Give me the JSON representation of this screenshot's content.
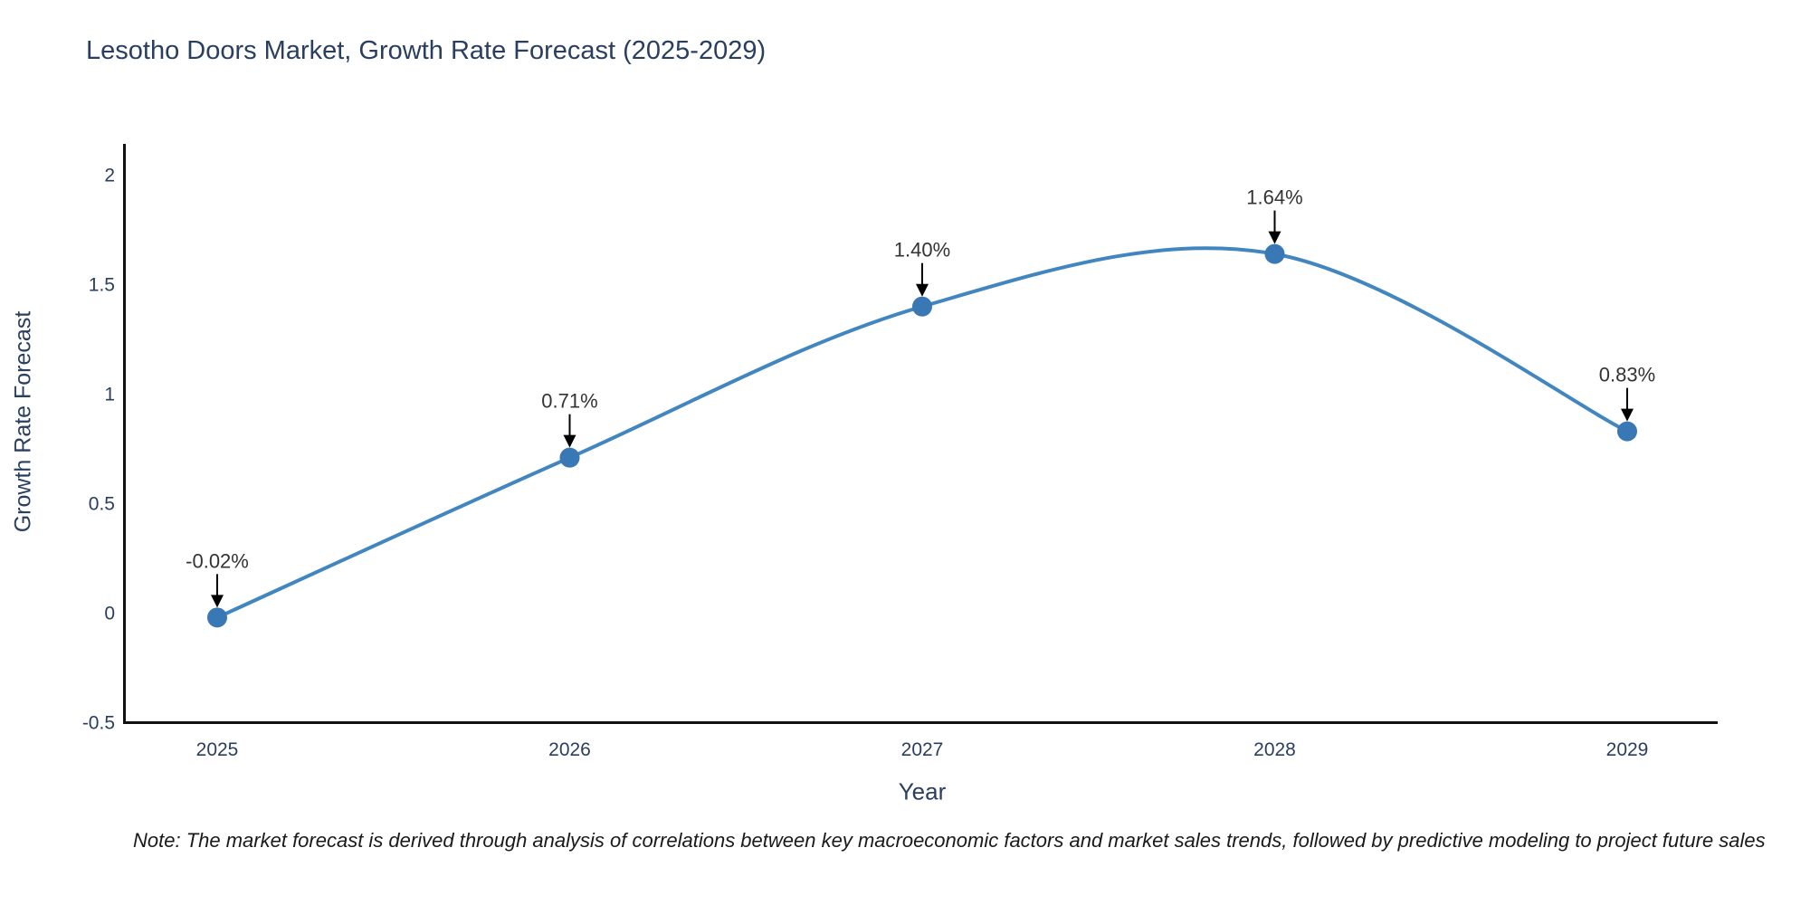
{
  "title": "Lesotho Doors Market, Growth Rate Forecast (2025-2029)",
  "note": "Note: The market forecast is derived through analysis of correlations between key macroeconomic factors and market sales trends, followed by predictive modeling to project future sales",
  "chart_data": {
    "type": "line",
    "title": "Lesotho Doors Market, Growth Rate Forecast (2025-2029)",
    "xlabel": "Year",
    "ylabel": "Growth Rate Forecast",
    "x": [
      2025,
      2026,
      2027,
      2028,
      2029
    ],
    "values": [
      -0.02,
      0.71,
      1.4,
      1.64,
      0.83
    ],
    "point_labels": [
      "-0.02%",
      "0.71%",
      "1.40%",
      "1.64%",
      "0.83%"
    ],
    "x_tick_labels": [
      "2025",
      "2026",
      "2027",
      "2028",
      "2029"
    ],
    "y_ticks": [
      2,
      1.5,
      1,
      0.5,
      0,
      -0.5
    ],
    "ylim": [
      -0.5,
      2.14
    ],
    "grid": false,
    "legend": "none",
    "line_shape": "spline",
    "annotation_style": "black-down-arrow",
    "colors": {
      "line": "#4286c0",
      "marker": "#3a77b5",
      "axis": "#111111",
      "axis_text": "#2a3f5f",
      "annotation_text": "#333333",
      "arrow": "#000000",
      "background": "#ffffff"
    }
  }
}
